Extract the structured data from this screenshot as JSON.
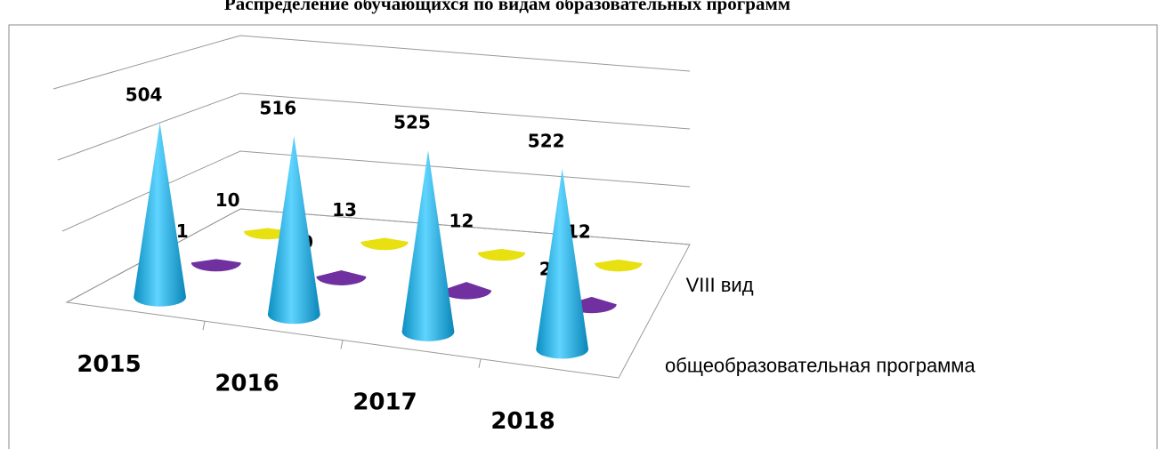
{
  "chart_data": {
    "type": "cone3d",
    "title": "Распределение обучающихся по видам образовательных программ",
    "categories": [
      "2015",
      "2016",
      "2017",
      "2018"
    ],
    "series": [
      {
        "name": "общеобразовательная программа",
        "color": "#1fb4e6",
        "values": [
          504,
          516,
          525,
          522
        ]
      },
      {
        "name": null,
        "color": "#7030a0",
        "values": [
          11,
          19,
          26,
          23
        ]
      },
      {
        "name": "VIII вид",
        "color": "#e8e010",
        "values": [
          10,
          13,
          12,
          12
        ]
      }
    ],
    "ylim": [
      0,
      600
    ],
    "yticks": [
      0,
      200,
      400,
      600
    ],
    "grid": true
  }
}
